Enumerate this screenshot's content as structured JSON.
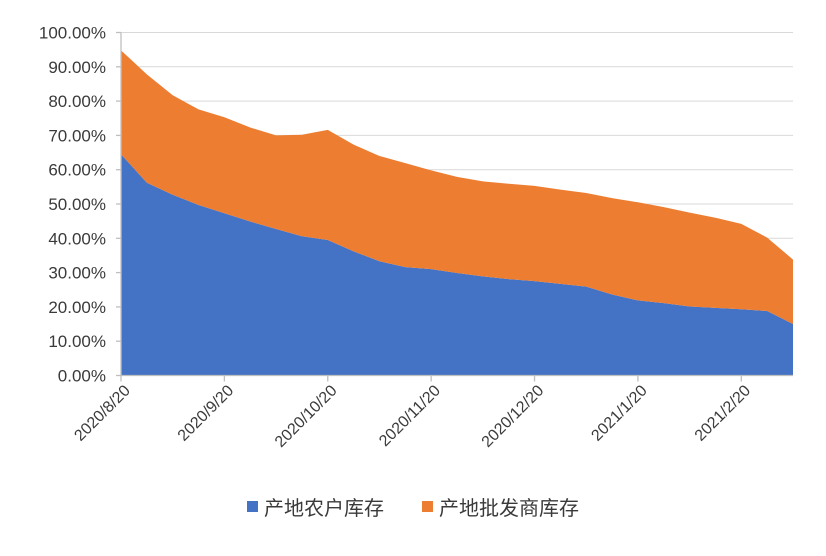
{
  "chart_data": {
    "type": "area",
    "stacked": true,
    "title": "",
    "xlabel": "",
    "ylabel": "",
    "y_unit": "%",
    "ylim": [
      0,
      100
    ],
    "grid": "horizontal",
    "legend_position": "bottom-center",
    "n_points": 27,
    "y_ticklabels": [
      "0.00%",
      "10.00%",
      "20.00%",
      "30.00%",
      "40.00%",
      "50.00%",
      "60.00%",
      "70.00%",
      "80.00%",
      "90.00%",
      "100.00%"
    ],
    "x_ticklabels": [
      "2020/8/20",
      "2020/9/20",
      "2020/10/20",
      "2020/11/20",
      "2020/12/20",
      "2021/1/20",
      "2021/2/20"
    ],
    "x_tick_indices": [
      0,
      4,
      8,
      12,
      16,
      20,
      24
    ],
    "series": [
      {
        "name": "产地农户库存",
        "color": "#4472C4",
        "values": [
          64.5,
          56.2,
          52.7,
          49.7,
          47.3,
          44.9,
          42.7,
          40.6,
          39.5,
          36.2,
          33.3,
          31.6,
          31.0,
          29.9,
          28.9,
          28.1,
          27.5,
          26.7,
          25.9,
          23.6,
          21.9,
          21.1,
          20.1,
          19.7,
          19.3,
          18.8,
          15.0
        ]
      },
      {
        "name": "产地批发商库存",
        "color": "#ED7D31",
        "values": [
          30.3,
          31.6,
          29.0,
          27.9,
          28.0,
          27.4,
          27.3,
          29.6,
          32.1,
          31.1,
          30.7,
          30.3,
          28.8,
          28.0,
          27.7,
          27.8,
          27.8,
          27.5,
          27.3,
          28.1,
          28.6,
          28.0,
          27.4,
          26.3,
          24.9,
          21.4,
          18.8
        ],
        "stacked_on": "产地农户库存"
      }
    ]
  },
  "colors": {
    "background": "#FFFFFF",
    "gridline": "#D9D9D9",
    "axis_line": "#BFBFBF",
    "tick_mark": "#BFBFBF",
    "text": "#3A3A3A",
    "farmer_series": "#4472C4",
    "wholesaler_series": "#ED7D31"
  }
}
